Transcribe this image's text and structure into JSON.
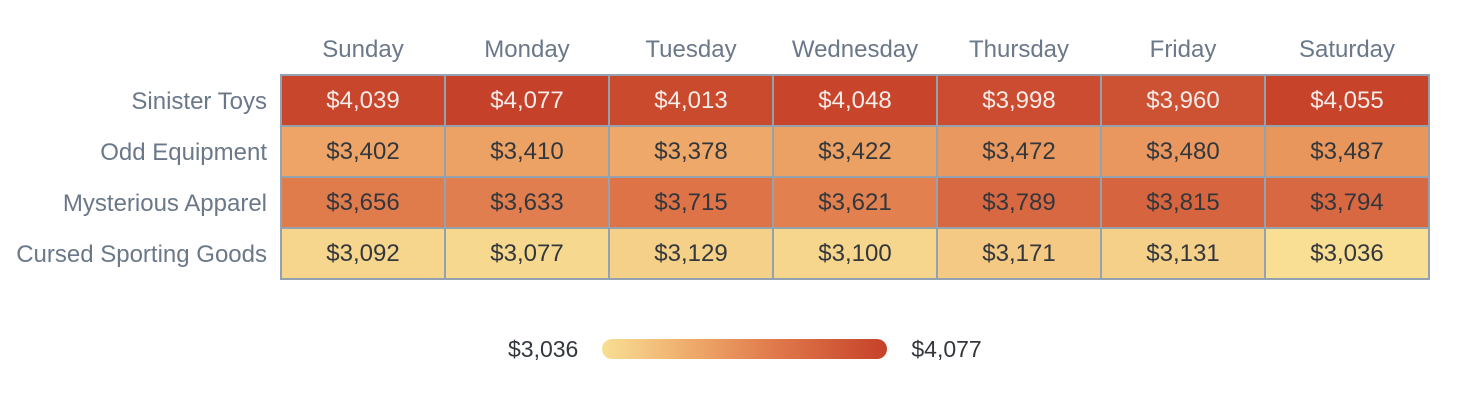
{
  "chart_data": {
    "type": "heatmap",
    "title": "",
    "categories": [
      "Sunday",
      "Monday",
      "Tuesday",
      "Wednesday",
      "Thursday",
      "Friday",
      "Saturday"
    ],
    "rows": [
      {
        "name": "Sinister Toys",
        "values": [
          4039,
          4077,
          4013,
          4048,
          3998,
          3960,
          4055
        ]
      },
      {
        "name": "Odd Equipment",
        "values": [
          3402,
          3410,
          3378,
          3422,
          3472,
          3480,
          3487
        ]
      },
      {
        "name": "Mysterious Apparel",
        "values": [
          3656,
          3633,
          3715,
          3621,
          3789,
          3815,
          3794
        ]
      },
      {
        "name": "Cursed Sporting Goods",
        "values": [
          3092,
          3077,
          3129,
          3100,
          3171,
          3131,
          3036
        ]
      }
    ],
    "value_prefix": "$",
    "min": 3036,
    "max": 4077,
    "legend": {
      "min_label": "$3,036",
      "max_label": "$4,077"
    },
    "colors": {
      "scale_stops": [
        {
          "t": 0.0,
          "color": "#f8df94"
        },
        {
          "t": 0.35,
          "color": "#eda466"
        },
        {
          "t": 0.6,
          "color": "#e07a4c"
        },
        {
          "t": 1.0,
          "color": "#c64129"
        }
      ],
      "cell_border": "#93a2ae",
      "cell_text_dark": "#33373c",
      "cell_text_light": "#f4ece8",
      "axis_label_color": "#6b7889",
      "legend_label_color": "#33373c",
      "background": "#ffffff"
    },
    "grid": true,
    "legend_position": "bottom-center"
  }
}
